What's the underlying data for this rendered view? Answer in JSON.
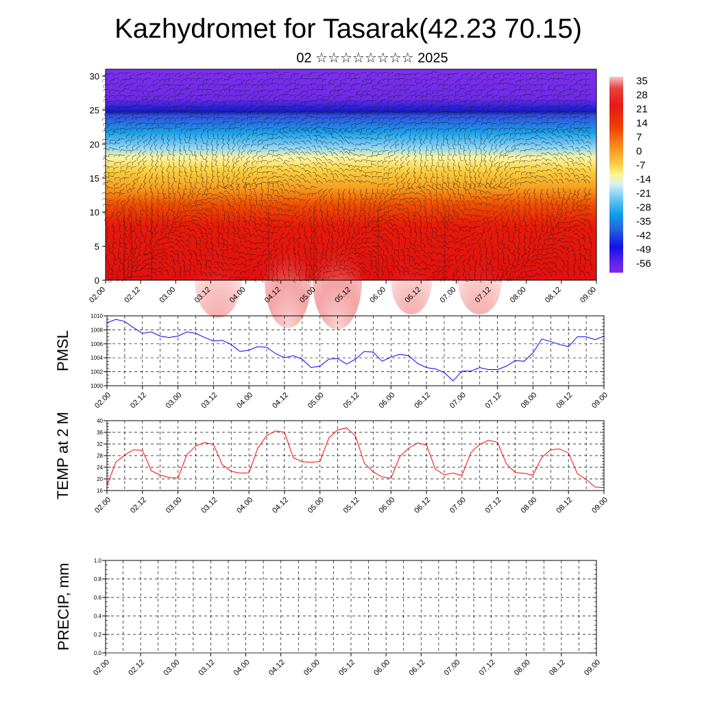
{
  "header": {
    "title": "Kazhydromet for Tasarak(42.23 70.15)",
    "subtitle": "02 ☆☆☆☆☆☆☆☆ 2025"
  },
  "colors": {
    "pmsl_line": "#0000ff",
    "temp_line": "#ff0000",
    "grid": "#000000",
    "colorbar_top": "#f4b6b6",
    "colorbar_bottom": "#7b2bea"
  },
  "chart_data": [
    {
      "type": "heatmap",
      "title": "",
      "ylabel": "",
      "xlim": [
        0,
        14
      ],
      "ylim": [
        0,
        31
      ],
      "y_ticks": [
        "0",
        "5",
        "10",
        "15",
        "20",
        "25",
        "30"
      ],
      "x_ticks": [
        "02.00",
        "02.12",
        "03.00",
        "03.12",
        "04.00",
        "04.12",
        "05.00",
        "05.12",
        "06.00",
        "06.12",
        "07.00",
        "07.12",
        "08.00",
        "08.12",
        "09.00"
      ],
      "colorbar_labels": [
        "35",
        "28",
        "21",
        "14",
        "7",
        "0",
        "-7",
        "-14",
        "-21",
        "-28",
        "-35",
        "-42",
        "-49",
        "-56"
      ],
      "overlay": "wind barbs"
    },
    {
      "type": "line",
      "ylabel": "PMSL",
      "ylim": [
        1000,
        1010
      ],
      "y_ticks": [
        "1000",
        "1002",
        "1004",
        "1006",
        "1008",
        "1010"
      ],
      "x_ticks": [
        "02.00",
        "02.12",
        "03.00",
        "03.12",
        "04.00",
        "04.12",
        "05.00",
        "05.12",
        "06.00",
        "06.12",
        "07.00",
        "07.12",
        "08.00",
        "08.12",
        "09.00"
      ],
      "step_hours": 3,
      "series": [
        {
          "values": [
            1009.0,
            1009.5,
            1009.2,
            1008.3,
            1007.5,
            1007.7,
            1007.1,
            1006.9,
            1007.1,
            1007.7,
            1007.5,
            1006.9,
            1006.4,
            1006.5,
            1005.9,
            1004.9,
            1005.1,
            1005.6,
            1005.5,
            1004.6,
            1004.0,
            1004.3,
            1003.8,
            1002.6,
            1002.8,
            1003.8,
            1003.9,
            1003.1,
            1003.8,
            1004.9,
            1004.8,
            1003.5,
            1004.1,
            1004.5,
            1004.3,
            1003.2,
            1002.6,
            1002.4,
            1001.9,
            1000.7,
            1002.1,
            1002.1,
            1002.6,
            1002.3,
            1002.3,
            1002.8,
            1003.6,
            1003.5,
            1004.7,
            1006.7,
            1006.3,
            1005.9,
            1005.6,
            1007.0,
            1007.0,
            1006.6,
            1007.1
          ]
        }
      ]
    },
    {
      "type": "line",
      "ylabel": "TEMP at 2 M",
      "ylim": [
        16,
        40
      ],
      "y_ticks": [
        "16",
        "20",
        "24",
        "28",
        "32",
        "36",
        "40"
      ],
      "x_ticks": [
        "02.00",
        "02.12",
        "03.00",
        "03.12",
        "04.00",
        "04.12",
        "05.00",
        "05.12",
        "06.00",
        "06.12",
        "07.00",
        "07.12",
        "08.00",
        "08.12",
        "09.00"
      ],
      "step_hours": 3,
      "series": [
        {
          "values": [
            17.7,
            25.8,
            28.2,
            30.0,
            29.8,
            22.8,
            21.3,
            20.5,
            20.3,
            28.3,
            31.3,
            32.5,
            31.8,
            24.9,
            22.6,
            22.0,
            22.1,
            30.6,
            34.9,
            36.5,
            36.0,
            27.3,
            25.9,
            25.7,
            26.0,
            34.1,
            36.9,
            37.5,
            34.8,
            25.4,
            22.4,
            20.7,
            20.2,
            27.7,
            30.6,
            32.3,
            31.7,
            23.4,
            21.4,
            22.0,
            21.2,
            29.0,
            31.9,
            33.3,
            32.6,
            25.2,
            22.2,
            21.9,
            21.3,
            27.4,
            30.0,
            30.3,
            28.9,
            21.8,
            19.8,
            17.2,
            17.0
          ]
        }
      ]
    },
    {
      "type": "line",
      "ylabel": "PRECIP, mm",
      "ylim": [
        0,
        1
      ],
      "y_ticks": [
        "0.0",
        "0.2",
        "0.4",
        "0.6",
        "0.8",
        "1.0"
      ],
      "x_ticks": [
        "02.00",
        "02.12",
        "03.00",
        "03.12",
        "04.00",
        "04.12",
        "05.00",
        "05.12",
        "06.00",
        "06.12",
        "07.00",
        "07.12",
        "08.00",
        "08.12",
        "09.00"
      ],
      "step_hours": 3,
      "series": [
        {
          "values": [
            0,
            0,
            0,
            0,
            0,
            0,
            0,
            0,
            0,
            0,
            0,
            0,
            0,
            0,
            0,
            0,
            0,
            0,
            0,
            0,
            0,
            0,
            0,
            0,
            0,
            0,
            0,
            0,
            0,
            0,
            0,
            0,
            0,
            0,
            0,
            0,
            0,
            0,
            0,
            0,
            0,
            0,
            0,
            0,
            0,
            0,
            0,
            0,
            0,
            0,
            0,
            0,
            0,
            0,
            0,
            0
          ]
        }
      ]
    }
  ]
}
